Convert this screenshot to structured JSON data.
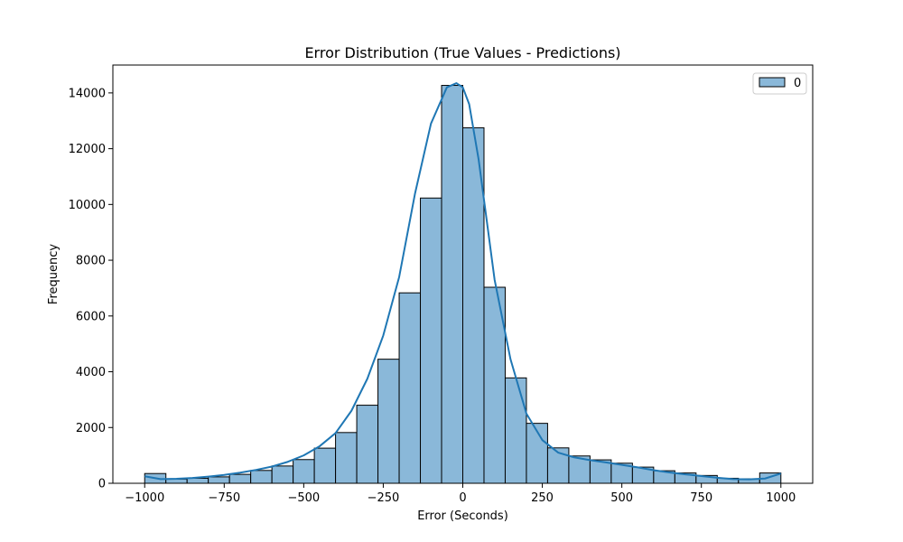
{
  "chart_data": {
    "type": "bar",
    "title": "Error Distribution (True Values - Predictions)",
    "xlabel": "Error (Seconds)",
    "ylabel": "Frequency",
    "xlim": [
      -1100,
      1100
    ],
    "ylim": [
      0,
      15000
    ],
    "x_ticks": [
      -1000,
      -750,
      -500,
      -250,
      0,
      250,
      500,
      750,
      1000
    ],
    "x_tick_labels": [
      "−1000",
      "−750",
      "−500",
      "−250",
      "0",
      "250",
      "500",
      "750",
      "1000"
    ],
    "y_ticks": [
      0,
      2000,
      4000,
      6000,
      8000,
      10000,
      12000,
      14000
    ],
    "y_tick_labels": [
      "0",
      "2000",
      "4000",
      "6000",
      "8000",
      "10000",
      "12000",
      "14000"
    ],
    "grid": false,
    "legend": {
      "entries": [
        "0"
      ],
      "placement": "top-right"
    },
    "bar_color": "#8ab8d9",
    "bar_edge_color": "#000000",
    "kde_color": "#1f77b4",
    "bin_start": -1000,
    "bin_width": 66.6667,
    "values": [
      350,
      150,
      180,
      230,
      320,
      460,
      620,
      850,
      1260,
      1820,
      2800,
      4450,
      6830,
      10230,
      14270,
      12750,
      7030,
      3780,
      2150,
      1270,
      980,
      840,
      720,
      580,
      450,
      370,
      280,
      180,
      160,
      370
    ],
    "kde": {
      "x": [
        -1000,
        -950,
        -900,
        -850,
        -800,
        -750,
        -700,
        -650,
        -600,
        -550,
        -500,
        -450,
        -400,
        -350,
        -300,
        -250,
        -200,
        -150,
        -100,
        -50,
        -20,
        0,
        20,
        50,
        100,
        150,
        200,
        250,
        300,
        350,
        400,
        450,
        500,
        550,
        600,
        650,
        700,
        750,
        800,
        850,
        900,
        950,
        1000
      ],
      "y": [
        250,
        150,
        160,
        190,
        240,
        300,
        380,
        480,
        600,
        770,
        1000,
        1330,
        1800,
        2600,
        3750,
        5300,
        7400,
        10400,
        12900,
        14200,
        14350,
        14200,
        13600,
        11600,
        7300,
        4450,
        2500,
        1550,
        1100,
        930,
        830,
        750,
        660,
        570,
        470,
        390,
        320,
        260,
        200,
        150,
        140,
        170,
        350
      ]
    }
  }
}
